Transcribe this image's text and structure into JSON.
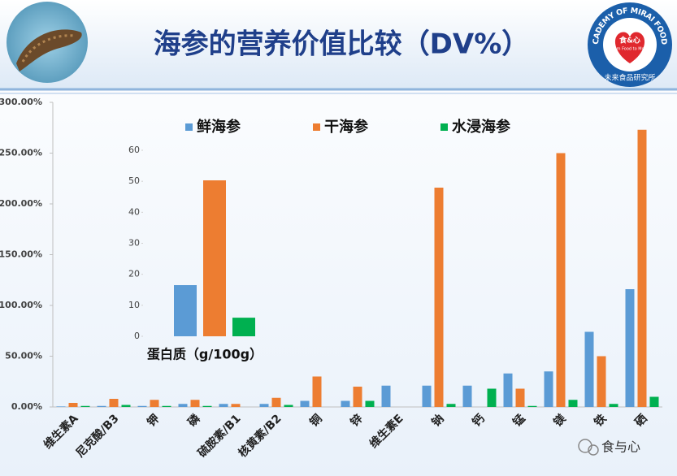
{
  "chart_data": [
    {
      "type": "bar",
      "title": "海参的营养价值比较（DV%）",
      "categories": [
        "维生素A",
        "尼克酸/B3",
        "钾",
        "磷",
        "硫胺素/B1",
        "核黄素/B2",
        "铜",
        "锌",
        "维生素E",
        "钠",
        "钙",
        "锰",
        "镁",
        "铁",
        "硒"
      ],
      "series": [
        {
          "name": "鲜海参",
          "color": "#5b9bd5",
          "values": [
            0.5,
            1,
            1,
            3,
            3,
            3,
            6,
            6,
            21,
            21,
            21,
            33,
            35,
            74,
            116
          ]
        },
        {
          "name": "干海参",
          "color": "#ed7d31",
          "values": [
            4,
            8,
            7,
            7,
            3,
            9,
            30,
            20,
            0,
            216,
            0,
            18,
            250,
            50,
            273
          ]
        },
        {
          "name": "水浸海参",
          "color": "#00b050",
          "values": [
            1,
            2,
            1,
            1,
            0,
            2,
            0,
            6,
            0,
            3,
            18,
            1,
            7,
            3,
            10
          ]
        }
      ],
      "ylim": [
        0,
        300
      ],
      "yticks": [
        {
          "value": 0,
          "label": "0.00%"
        },
        {
          "value": 50,
          "label": "50.00%"
        },
        {
          "value": 100,
          "label": "100.00%"
        },
        {
          "value": 150,
          "label": "150.00%"
        },
        {
          "value": 200,
          "label": "200.00%"
        },
        {
          "value": 250,
          "label": "250.00%"
        },
        {
          "value": 300,
          "label": "300.00%"
        }
      ],
      "grid": false,
      "legend": "top"
    },
    {
      "type": "bar",
      "x_label": "蛋白质（g/100g）",
      "series": [
        {
          "color": "#5b9bd5",
          "values": [
            16.5
          ]
        },
        {
          "color": "#ed7d31",
          "values": [
            50.3
          ]
        },
        {
          "color": "#00b050",
          "values": [
            6
          ]
        }
      ],
      "ylim": [
        0,
        60
      ],
      "yticks": [
        0,
        10,
        20,
        30,
        40,
        50,
        60
      ],
      "grid": false
    }
  ],
  "logo": {
    "ring": "ACADEMY OF MIRAI FOODS",
    "name": "食&心",
    "slogan": "From Food to Mood",
    "institute": "未来食品研究所"
  },
  "watermark": "食与心"
}
